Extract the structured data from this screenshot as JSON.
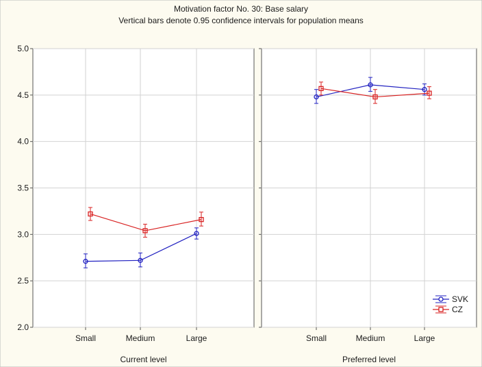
{
  "chart_data": {
    "type": "line",
    "title": "Motivation factor No. 30: Base salary",
    "subtitle": "Vertical bars denote 0.95 confidence intervals for population means",
    "ylim": [
      2.0,
      5.0
    ],
    "yticks": [
      "2.0",
      "2.5",
      "3.0",
      "3.5",
      "4.0",
      "4.5",
      "5.0"
    ],
    "grid": true,
    "legend": "bottom-right",
    "colors": {
      "SVK": "#2020c0",
      "CZ": "#d82020",
      "background": "#fdfbf0"
    },
    "panels": [
      {
        "xlabel": "Current level",
        "categories": [
          "Small",
          "Medium",
          "Large"
        ],
        "series": [
          {
            "name": "SVK",
            "marker": "circle",
            "values": [
              2.71,
              2.72,
              3.01
            ],
            "ci_low": [
              2.64,
              2.65,
              2.95
            ],
            "ci_high": [
              2.79,
              2.8,
              3.07
            ]
          },
          {
            "name": "CZ",
            "marker": "square",
            "values": [
              3.22,
              3.04,
              3.16
            ],
            "ci_low": [
              3.15,
              2.97,
              3.09
            ],
            "ci_high": [
              3.29,
              3.11,
              3.24
            ]
          }
        ]
      },
      {
        "xlabel": "Preferred level",
        "categories": [
          "Small",
          "Medium",
          "Large"
        ],
        "series": [
          {
            "name": "SVK",
            "marker": "circle",
            "values": [
              4.48,
              4.61,
              4.56
            ],
            "ci_low": [
              4.41,
              4.54,
              4.5
            ],
            "ci_high": [
              4.56,
              4.69,
              4.62
            ]
          },
          {
            "name": "CZ",
            "marker": "square",
            "values": [
              4.57,
              4.48,
              4.52
            ],
            "ci_low": [
              4.5,
              4.41,
              4.46
            ],
            "ci_high": [
              4.64,
              4.56,
              4.59
            ]
          }
        ]
      }
    ]
  }
}
